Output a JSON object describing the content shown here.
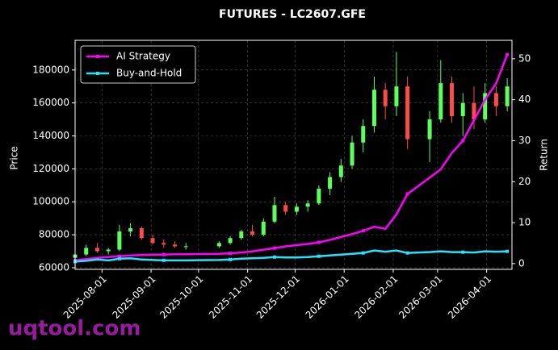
{
  "chart_data": {
    "type": "candlestick",
    "title": "FUTURES - LC2607.GFE",
    "ylabel": "Price",
    "y2label": "Return",
    "watermark": "uqtool.com",
    "up_color": "#5cff5c",
    "down_color": "#ff4a4a",
    "x": [
      "2025-07-15",
      "2025-07-22",
      "2025-07-29",
      "2025-08-05",
      "2025-08-12",
      "2025-08-19",
      "2025-08-26",
      "2025-09-02",
      "2025-09-09",
      "2025-09-16",
      "2025-09-23",
      "2025-10-14",
      "2025-10-21",
      "2025-10-28",
      "2025-11-04",
      "2025-11-11",
      "2025-11-18",
      "2025-11-25",
      "2025-12-02",
      "2025-12-09",
      "2025-12-16",
      "2025-12-23",
      "2025-12-30",
      "2026-01-06",
      "2026-01-13",
      "2026-01-20",
      "2026-01-27",
      "2026-02-03",
      "2026-02-10",
      "2026-02-24",
      "2026-03-03",
      "2026-03-10",
      "2026-03-17",
      "2026-03-24",
      "2026-03-31",
      "2026-04-07",
      "2026-04-14"
    ],
    "open": [
      66000,
      68000,
      72000,
      70000,
      71000,
      82000,
      84000,
      78000,
      75000,
      74000,
      73000,
      73000,
      75000,
      78000,
      82000,
      80000,
      88000,
      98000,
      94000,
      97000,
      99000,
      108000,
      115000,
      122000,
      136000,
      146000,
      168000,
      158000,
      170000,
      138000,
      150000,
      172000,
      152000,
      160000,
      150000,
      166000,
      158000
    ],
    "high": [
      69000,
      74000,
      75000,
      72000,
      86000,
      87000,
      85000,
      80000,
      77000,
      76000,
      75000,
      76000,
      79000,
      83000,
      86000,
      90000,
      103000,
      100000,
      99000,
      101000,
      110000,
      118000,
      126000,
      140000,
      150000,
      176000,
      172000,
      191000,
      176000,
      155000,
      186000,
      176000,
      166000,
      170000,
      172000,
      170000,
      175000
    ],
    "low": [
      65000,
      67000,
      69000,
      68000,
      70000,
      79000,
      77000,
      74000,
      72000,
      72000,
      71000,
      72000,
      74000,
      77000,
      79000,
      79000,
      87000,
      92000,
      92000,
      94000,
      98000,
      104000,
      112000,
      120000,
      130000,
      142000,
      150000,
      152000,
      132000,
      124000,
      148000,
      148000,
      140000,
      144000,
      148000,
      152000,
      155000
    ],
    "close": [
      68000,
      72000,
      70000,
      71000,
      82000,
      84000,
      78000,
      75000,
      74000,
      73000,
      73000,
      75000,
      78000,
      82000,
      80000,
      88000,
      98000,
      94000,
      97000,
      99000,
      108000,
      115000,
      122000,
      136000,
      146000,
      168000,
      158000,
      170000,
      138000,
      150000,
      172000,
      152000,
      160000,
      150000,
      166000,
      158000,
      170000
    ],
    "series": [
      {
        "name": "AI Strategy",
        "color": "#ff00ff",
        "axis": "y2",
        "values": [
          0.8,
          1.1,
          1.4,
          1.6,
          1.8,
          2.0,
          2.1,
          2.2,
          2.2,
          2.3,
          2.3,
          2.4,
          2.5,
          2.7,
          3.0,
          3.4,
          3.8,
          4.2,
          4.5,
          4.8,
          5.2,
          5.8,
          6.5,
          7.2,
          8.0,
          9.0,
          8.5,
          12,
          17,
          21,
          23,
          27,
          30,
          35,
          40,
          44,
          51
        ]
      },
      {
        "name": "Buy-and-Hold",
        "color": "#22e5ff",
        "axis": "y2",
        "values": [
          0.5,
          0.7,
          1.0,
          0.8,
          1.2,
          1.3,
          1.0,
          0.9,
          0.8,
          0.8,
          0.8,
          0.9,
          1.0,
          1.2,
          1.3,
          1.4,
          1.6,
          1.5,
          1.5,
          1.6,
          1.8,
          2.0,
          2.2,
          2.4,
          2.6,
          3.2,
          2.9,
          3.2,
          2.6,
          2.8,
          3.0,
          2.8,
          2.8,
          2.7,
          3.0,
          2.9,
          3.0
        ]
      }
    ],
    "xlim": [
      "2025-07-15",
      "2026-04-17"
    ],
    "xticks": [
      "2025-08-01",
      "2025-09-01",
      "2025-10-01",
      "2025-11-01",
      "2025-12-01",
      "2026-01-01",
      "2026-02-01",
      "2026-03-01",
      "2026-04-01"
    ],
    "ylim": [
      59000,
      198000
    ],
    "yticks": [
      60000,
      80000,
      100000,
      120000,
      140000,
      160000,
      180000
    ],
    "y2lim": [
      -1.4,
      54.5
    ],
    "y2ticks": [
      0,
      10,
      20,
      30,
      40,
      50
    ],
    "grid": true,
    "legend": "upper left"
  }
}
